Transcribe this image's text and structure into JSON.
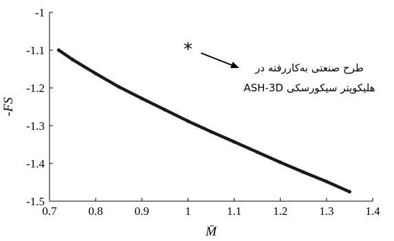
{
  "chart_data": {
    "type": "line",
    "xlabel": "M̄",
    "ylabel": "-FS",
    "xlim": [
      0.7,
      1.4
    ],
    "ylim": [
      -1.5,
      -1.0
    ],
    "x_ticks": [
      0.7,
      0.8,
      0.9,
      1.0,
      1.1,
      1.2,
      1.3,
      1.4
    ],
    "x_tick_labels": [
      "0.7",
      "0.8",
      "0.9",
      "1",
      "1.1",
      "1.2",
      "1.3",
      "1.4"
    ],
    "y_ticks": [
      -1.0,
      -1.1,
      -1.2,
      -1.3,
      -1.4,
      -1.5
    ],
    "y_tick_labels": [
      "-1",
      "-1.1",
      "-1.2",
      "-1.3",
      "-1.4",
      "-1.5"
    ],
    "grid": false,
    "box": "left-bottom",
    "series": [
      {
        "x": [
          0.72,
          0.75,
          0.8,
          0.85,
          0.9,
          0.95,
          1.0,
          1.05,
          1.1,
          1.15,
          1.2,
          1.25,
          1.3,
          1.35
        ],
        "y": [
          -1.1,
          -1.125,
          -1.162,
          -1.197,
          -1.228,
          -1.258,
          -1.288,
          -1.316,
          -1.343,
          -1.37,
          -1.397,
          -1.423,
          -1.448,
          -1.475
        ],
        "color": "#1a1a1a"
      }
    ],
    "annotation": {
      "marker": "*",
      "point": [
        1.0,
        -1.095
      ],
      "text_lines": [
        "طرح صنعتی به‌کاررفته در",
        "هلیکوپتر سیکورسکی ASH-3D"
      ]
    }
  }
}
